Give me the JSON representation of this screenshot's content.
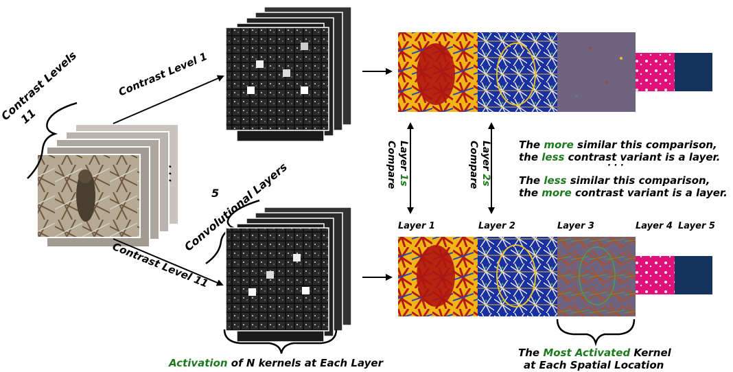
{
  "contrast_levels": {
    "count": "11",
    "label": "Contrast Levels"
  },
  "conv_layers": {
    "count": "5",
    "label": "Convolutional Layers"
  },
  "contrast_level_1": "Contrast Level 1",
  "contrast_level_11": "Contrast Level 11",
  "ellipsis": "· · ·",
  "compare_1": {
    "word": "Compare",
    "layer": "Layer",
    "num": "1s"
  },
  "compare_2": {
    "word": "Compare",
    "layer": "Layer",
    "num": "2s"
  },
  "similarity": {
    "line1a": "The ",
    "line1b": "more",
    "line1c": " similar this comparison,",
    "line2a": "the ",
    "line2b": "less",
    "line2c": " contrast variant is a layer.",
    "dots": "· · ·",
    "line3a": "The ",
    "line3b": "less",
    "line3c": " similar this comparison,",
    "line4a": "the ",
    "line4b": "more",
    "line4c": " contrast variant is a layer."
  },
  "layer_labels": [
    "Layer 1",
    "Layer 2",
    "Layer 3",
    "Layer 4",
    "Layer 5"
  ],
  "activation_caption": {
    "green": "Activation",
    "rest": " of N kernels at Each Layer"
  },
  "kernel_caption": {
    "pre": "The ",
    "green": "Most Activated",
    "post": " Kernel",
    "line2": "at Each Spatial Location"
  },
  "colors": {
    "green": "#1e7a1e",
    "navy": "#13345f",
    "magenta": "#e0127a",
    "gray_purple": "#6e6480",
    "yellow": "#f2b61a",
    "red": "#b31a10",
    "blue": "#1a2fa0"
  }
}
